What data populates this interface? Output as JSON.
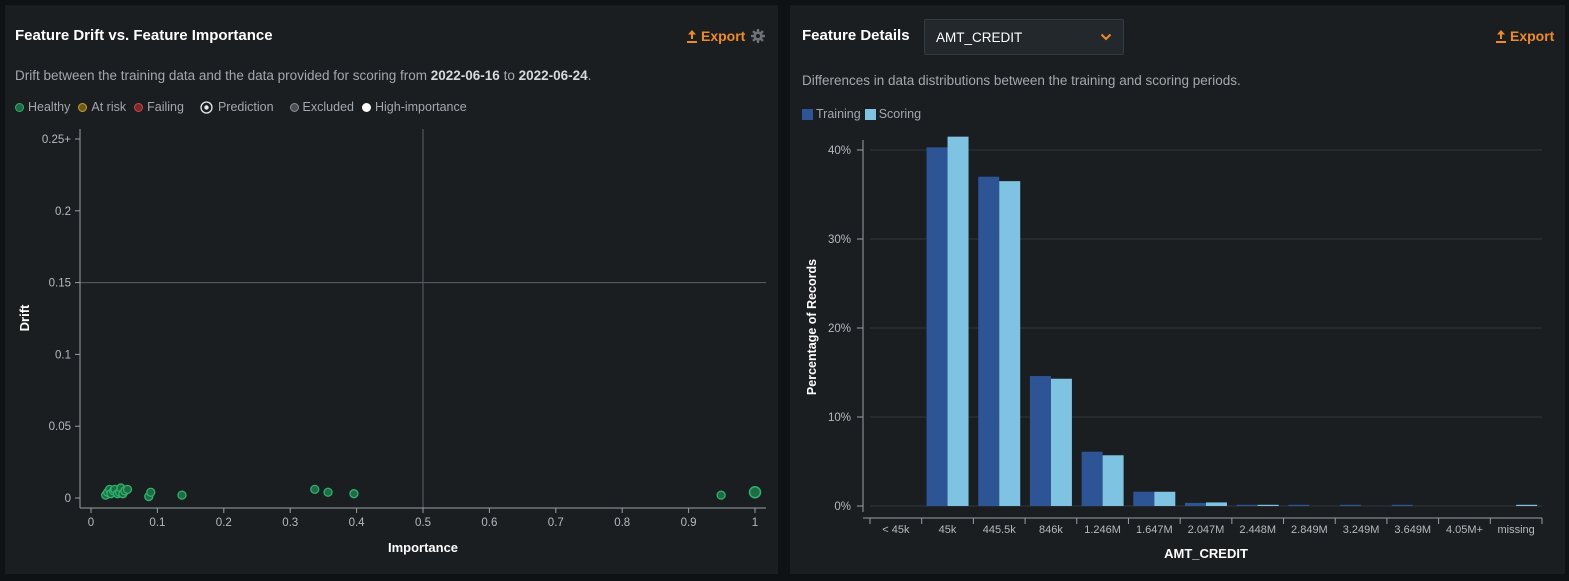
{
  "left": {
    "title": "Feature Drift vs. Feature Importance",
    "export_label": "Export",
    "desc_prefix": "Drift between the training data and the data provided for scoring from ",
    "date_from": "2022-06-16",
    "desc_mid": " to ",
    "date_to": "2022-06-24",
    "desc_suffix": ".",
    "legend": {
      "healthy": "Healthy",
      "at_risk": "At risk",
      "failing": "Failing",
      "prediction": "Prediction",
      "excluded": "Excluded",
      "high_importance": "High-importance"
    }
  },
  "right": {
    "title": "Feature Details",
    "selected_feature": "AMT_CREDIT",
    "export_label": "Export",
    "description": "Differences in data distributions between the training and scoring periods.",
    "legend": {
      "training": "Training",
      "scoring": "Scoring"
    }
  },
  "colors": {
    "healthy": "#2db36a",
    "at_risk": "#c9a227",
    "failing": "#d24545",
    "training": "#2d5494",
    "scoring": "#7ec4e2",
    "accent": "#f08a24"
  },
  "chart_data": [
    {
      "type": "scatter",
      "xlabel": "Importance",
      "ylabel": "Drift",
      "xlim": [
        0,
        1
      ],
      "ylim": [
        0,
        0.25
      ],
      "x_ticks": [
        "0",
        "0.1",
        "0.2",
        "0.3",
        "0.4",
        "0.5",
        "0.6",
        "0.7",
        "0.8",
        "0.9",
        "1"
      ],
      "y_ticks": [
        "0",
        "0.05",
        "0.1",
        "0.15",
        "0.2",
        "0.25+"
      ],
      "threshold_lines": {
        "x": 0.5,
        "y": 0.15
      },
      "points": [
        {
          "x": 0.022,
          "y": 0.002
        },
        {
          "x": 0.025,
          "y": 0.004
        },
        {
          "x": 0.028,
          "y": 0.006
        },
        {
          "x": 0.03,
          "y": 0.003
        },
        {
          "x": 0.034,
          "y": 0.005
        },
        {
          "x": 0.036,
          "y": 0.006
        },
        {
          "x": 0.04,
          "y": 0.003
        },
        {
          "x": 0.043,
          "y": 0.004
        },
        {
          "x": 0.045,
          "y": 0.007
        },
        {
          "x": 0.048,
          "y": 0.003
        },
        {
          "x": 0.051,
          "y": 0.005
        },
        {
          "x": 0.055,
          "y": 0.006
        },
        {
          "x": 0.087,
          "y": 0.001
        },
        {
          "x": 0.09,
          "y": 0.004
        },
        {
          "x": 0.137,
          "y": 0.002
        },
        {
          "x": 0.337,
          "y": 0.006
        },
        {
          "x": 0.357,
          "y": 0.004
        },
        {
          "x": 0.396,
          "y": 0.003
        },
        {
          "x": 0.949,
          "y": 0.002
        },
        {
          "x": 1.0,
          "y": 0.003
        },
        {
          "x": 1.0,
          "y": 0.004,
          "prediction": true
        }
      ]
    },
    {
      "type": "bar",
      "xlabel": "AMT_CREDIT",
      "ylabel": "Percentage of Records",
      "ylim": [
        0,
        40
      ],
      "y_ticks": [
        "0%",
        "10%",
        "20%",
        "30%",
        "40%"
      ],
      "categories": [
        "< 45k",
        "45k",
        "445.5k",
        "846k",
        "1.246M",
        "1.647M",
        "2.047M",
        "2.448M",
        "2.849M",
        "3.249M",
        "3.649M",
        "4.05M+",
        "missing"
      ],
      "series": [
        {
          "name": "Training",
          "values": [
            0,
            40.3,
            37.0,
            14.6,
            6.1,
            1.6,
            0.35,
            0.1,
            0.1,
            0.1,
            0.1,
            0.0,
            0.0
          ]
        },
        {
          "name": "Scoring",
          "values": [
            0,
            41.5,
            36.5,
            14.3,
            5.7,
            1.6,
            0.4,
            0.1,
            0.0,
            0.0,
            0.0,
            0.0,
            0.1
          ]
        }
      ]
    }
  ]
}
